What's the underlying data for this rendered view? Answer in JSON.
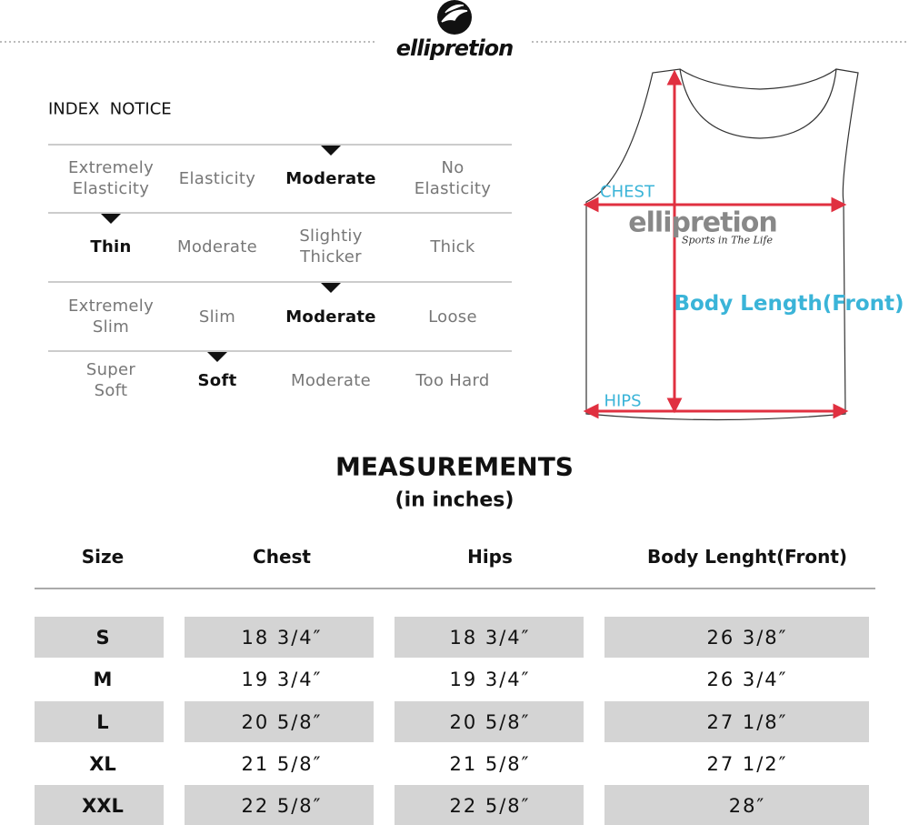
{
  "header": {
    "logo": "ellipretion"
  },
  "index_notice": {
    "title": "INDEX  NOTICE",
    "rows": [
      {
        "options": [
          "Extremely Elasticity",
          "Elasticity",
          "Moderate",
          "No Elasticity"
        ],
        "selected": 2
      },
      {
        "options": [
          "Thin",
          "Moderate",
          "Slightiy Thicker",
          "Thick"
        ],
        "selected": 0
      },
      {
        "options": [
          "Extremely Slim",
          "Slim",
          "Moderate",
          "Loose"
        ],
        "selected": 2
      },
      {
        "options": [
          "Super Soft",
          "Soft",
          "Moderate",
          "Too Hard"
        ],
        "selected": 1
      }
    ]
  },
  "diagram": {
    "logo": "ellipretion",
    "tagline": "Sports in The Life",
    "labels": {
      "chest": "CHEST",
      "body_length": "Body Length(Front)",
      "hips": "HIPS"
    }
  },
  "measurements": {
    "title": "MEASUREMENTS",
    "subtitle": "(in inches)",
    "columns": [
      "Size",
      "Chest",
      "Hips",
      "Body Lenght(Front)"
    ],
    "rows": [
      [
        "S",
        "18 3/4″",
        "18 3/4″",
        "26 3/8″"
      ],
      [
        "M",
        "19 3/4″",
        "19 3/4″",
        "26 3/4″"
      ],
      [
        "L",
        "20 5/8″",
        "20 5/8″",
        "27 1/8″"
      ],
      [
        "XL",
        "21 5/8″",
        "21 5/8″",
        "27 1/2″"
      ],
      [
        "XXL",
        "22 5/8″",
        "22 5/8″",
        "28″"
      ]
    ]
  }
}
